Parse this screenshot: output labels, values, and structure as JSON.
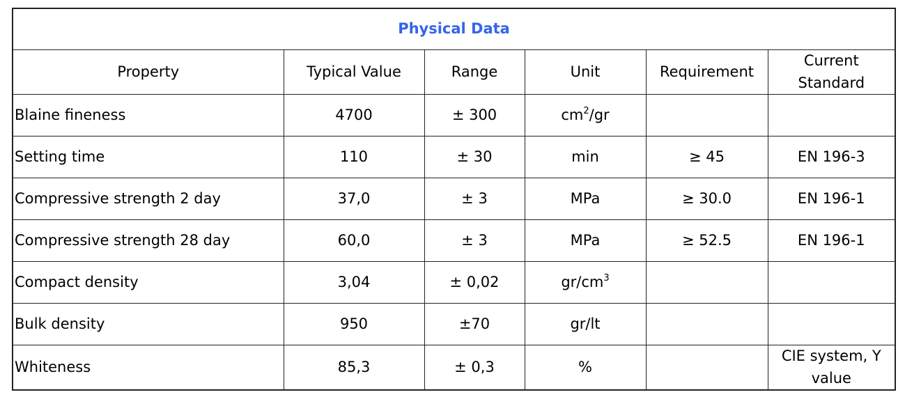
{
  "table": {
    "title": "Physical Data",
    "header": [
      "Property",
      "Typical Value",
      "Range",
      "Unit",
      "Requirement",
      "Current Standard"
    ],
    "rows": [
      [
        "Blaine fineness",
        "4700",
        "± 300",
        [
          "cm",
          "2",
          "/gr"
        ],
        null,
        null
      ],
      [
        "Setting time",
        "110",
        "± 30",
        "min",
        "≥ 45",
        "EN 196-3"
      ],
      [
        "Compressive strength 2 day",
        "37,0",
        "± 3",
        "MPa",
        "≥ 30.0",
        "EN 196-1"
      ],
      [
        "Compressive strength 28 day",
        "60,0",
        "± 3",
        "MPa",
        "≥ 52.5",
        "EN 196-1"
      ],
      [
        "Compact density",
        "3,04",
        "± 0,02",
        [
          "gr/cm",
          "3"
        ],
        null,
        null
      ],
      [
        "Bulk density",
        "950",
        "±70",
        "gr/lt",
        null,
        null
      ],
      [
        "Whiteness",
        "85,3",
        "± 0,3",
        "%",
        null,
        "CIE system, Y value"
      ]
    ]
  }
}
